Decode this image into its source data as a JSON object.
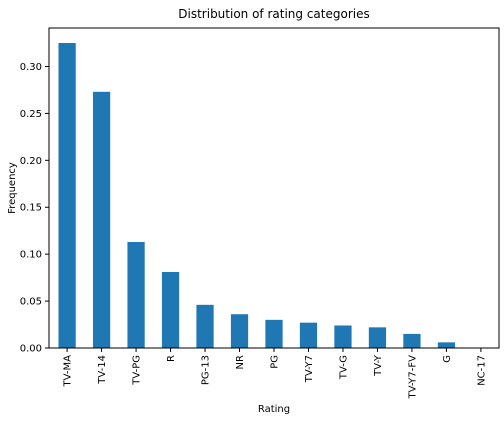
{
  "chart_data": {
    "type": "bar",
    "title": "Distribution of rating categories",
    "xlabel": "Rating",
    "ylabel": "Frequency",
    "categories": [
      "TV-MA",
      "TV-14",
      "TV-PG",
      "R",
      "PG-13",
      "NR",
      "PG",
      "TV-Y7",
      "TV-G",
      "TV-Y",
      "TV-Y7-FV",
      "G",
      "NC-17"
    ],
    "values": [
      0.325,
      0.273,
      0.113,
      0.081,
      0.046,
      0.036,
      0.03,
      0.027,
      0.024,
      0.022,
      0.015,
      0.006,
      0.0004
    ],
    "ylim": [
      0,
      0.341
    ],
    "yticks": [
      0.0,
      0.05,
      0.1,
      0.15,
      0.2,
      0.25,
      0.3
    ],
    "ytick_labels": [
      "0.00",
      "0.05",
      "0.10",
      "0.15",
      "0.20",
      "0.25",
      "0.30"
    ],
    "bar_color": "#1f77b4",
    "grid": false,
    "legend": "none"
  }
}
